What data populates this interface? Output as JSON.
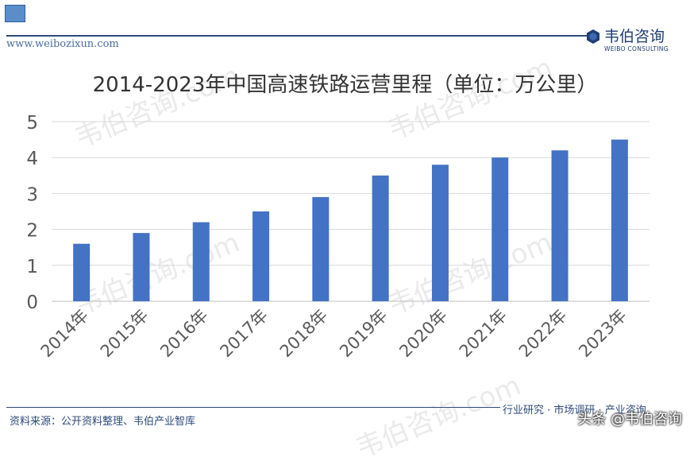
{
  "header": {
    "site_url": "www.weibozixun.com",
    "logo_cn": "韦伯咨询",
    "logo_en": "WEIBO CONSULTING"
  },
  "watermark_text": "韦伯咨询.com",
  "footer": {
    "source_note": "资料来源：公开资料整理、韦伯产业智库",
    "slogan": "行业研究 · 市场调研 · 产业咨询",
    "credit": "头条 @韦伯咨询"
  },
  "colors": {
    "bar": "#4472c4",
    "grid": "#d9d9d9",
    "text": "#595959",
    "brand": "#1f3d74"
  },
  "chart_data": {
    "type": "bar",
    "title": "2014-2023年中国高速铁路运营里程（单位：万公里）",
    "categories": [
      "2014年",
      "2015年",
      "2016年",
      "2017年",
      "2018年",
      "2019年",
      "2020年",
      "2021年",
      "2022年",
      "2023年"
    ],
    "values": [
      1.6,
      1.9,
      2.2,
      2.5,
      2.9,
      3.5,
      3.8,
      4.0,
      4.2,
      4.5
    ],
    "ylim": [
      0,
      5
    ],
    "yticks": [
      "0",
      "1",
      "2",
      "3",
      "4",
      "5"
    ],
    "grid": true,
    "legend": "none"
  }
}
